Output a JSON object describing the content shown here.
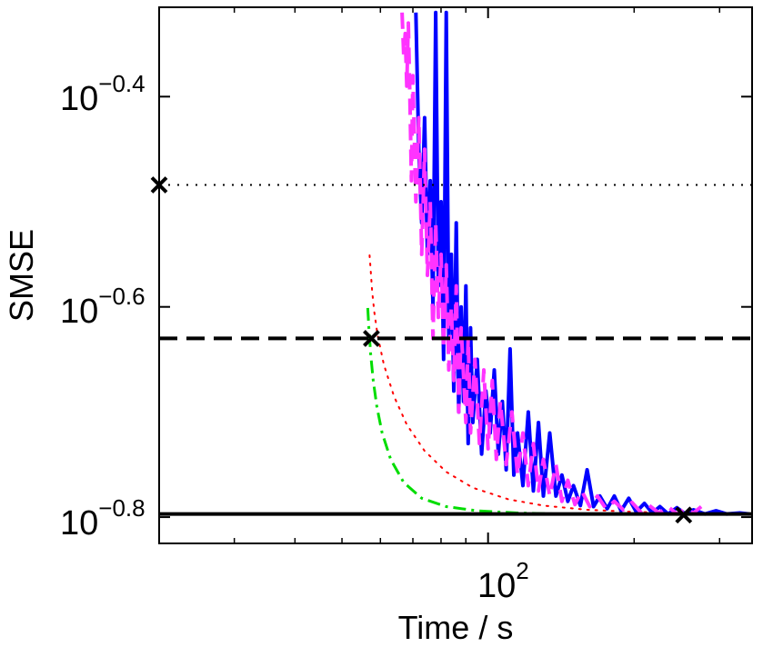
{
  "chart_data": {
    "type": "line",
    "xscale": "log",
    "yscale": "log",
    "xlabel": "Time / s",
    "ylabel": "SMSE",
    "xlim": [
      21,
      350
    ],
    "ylim_log10": [
      -0.825,
      -0.315
    ],
    "x_ticks": [
      {
        "base": "10",
        "exp": "2",
        "value": 100
      }
    ],
    "y_ticks": [
      {
        "base": "10",
        "exp": "−0.4",
        "value": -0.4
      },
      {
        "base": "10",
        "exp": "−0.6",
        "value": -0.6
      },
      {
        "base": "10",
        "exp": "−0.8",
        "value": -0.8
      }
    ],
    "horizontal_lines": [
      {
        "name": "dotted-reference",
        "y_log10": -0.484,
        "style": "dotted",
        "color": "#000000"
      },
      {
        "name": "dashed-reference",
        "y_log10": -0.63,
        "style": "dashed",
        "color": "#000000"
      },
      {
        "name": "solid-reference",
        "y_log10": -0.797,
        "style": "solid",
        "color": "#000000"
      }
    ],
    "markers": [
      {
        "name": "cross-dotted-start",
        "x": 21,
        "y_log10": -0.484
      },
      {
        "name": "cross-dashed-start",
        "x": 57.5,
        "y_log10": -0.63
      },
      {
        "name": "cross-solid-end",
        "x": 253,
        "y_log10": -0.798
      }
    ],
    "series": [
      {
        "name": "red-dotted",
        "color": "#ff0000",
        "style": "dotted",
        "width": 2,
        "points": [
          [
            57,
            -0.551
          ],
          [
            57.3,
            -0.565
          ],
          [
            57.7,
            -0.585
          ],
          [
            58.3,
            -0.605
          ],
          [
            59.2,
            -0.627
          ],
          [
            61,
            -0.655
          ],
          [
            64,
            -0.685
          ],
          [
            68,
            -0.712
          ],
          [
            74,
            -0.737
          ],
          [
            82,
            -0.757
          ],
          [
            93,
            -0.772
          ],
          [
            110,
            -0.783
          ],
          [
            130,
            -0.789
          ],
          [
            160,
            -0.793
          ],
          [
            200,
            -0.795
          ],
          [
            250,
            -0.796
          ]
        ]
      },
      {
        "name": "green-dashdot",
        "color": "#00dd00",
        "style": "dashdot",
        "width": 3,
        "points": [
          [
            56.5,
            -0.601
          ],
          [
            56.8,
            -0.62
          ],
          [
            57.3,
            -0.645
          ],
          [
            58,
            -0.67
          ],
          [
            59,
            -0.695
          ],
          [
            60.5,
            -0.72
          ],
          [
            63,
            -0.745
          ],
          [
            67,
            -0.767
          ],
          [
            73,
            -0.782
          ],
          [
            82,
            -0.79
          ],
          [
            95,
            -0.794
          ],
          [
            115,
            -0.796
          ],
          [
            140,
            -0.797
          ],
          [
            170,
            -0.797
          ]
        ]
      },
      {
        "name": "blue-solid",
        "color": "#0000ff",
        "style": "solid",
        "width": 4,
        "points": [
          [
            71,
            -0.32
          ],
          [
            72,
            -0.45
          ],
          [
            73,
            -0.52
          ],
          [
            74,
            -0.42
          ],
          [
            75,
            -0.55
          ],
          [
            76,
            -0.48
          ],
          [
            77,
            -0.6
          ],
          [
            78,
            -0.32
          ],
          [
            79,
            -0.58
          ],
          [
            80,
            -0.5
          ],
          [
            81,
            -0.65
          ],
          [
            82,
            -0.32
          ],
          [
            83,
            -0.63
          ],
          [
            84,
            -0.55
          ],
          [
            85,
            -0.68
          ],
          [
            86,
            -0.52
          ],
          [
            87,
            -0.7
          ],
          [
            88,
            -0.6
          ],
          [
            89,
            -0.69
          ],
          [
            90,
            -0.58
          ],
          [
            91,
            -0.73
          ],
          [
            92,
            -0.62
          ],
          [
            93,
            -0.71
          ],
          [
            95,
            -0.65
          ],
          [
            97,
            -0.74
          ],
          [
            99,
            -0.68
          ],
          [
            101,
            -0.72
          ],
          [
            103,
            -0.66
          ],
          [
            105,
            -0.74
          ],
          [
            107,
            -0.69
          ],
          [
            109,
            -0.755
          ],
          [
            111,
            -0.64
          ],
          [
            113,
            -0.76
          ],
          [
            115,
            -0.72
          ],
          [
            118,
            -0.77
          ],
          [
            121,
            -0.7
          ],
          [
            124,
            -0.775
          ],
          [
            127,
            -0.71
          ],
          [
            130,
            -0.78
          ],
          [
            134,
            -0.72
          ],
          [
            138,
            -0.78
          ],
          [
            142,
            -0.76
          ],
          [
            146,
            -0.785
          ],
          [
            150,
            -0.77
          ],
          [
            155,
            -0.789
          ],
          [
            160,
            -0.755
          ],
          [
            165,
            -0.79
          ],
          [
            170,
            -0.78
          ],
          [
            176,
            -0.792
          ],
          [
            182,
            -0.78
          ],
          [
            188,
            -0.794
          ],
          [
            195,
            -0.782
          ],
          [
            202,
            -0.795
          ],
          [
            210,
            -0.787
          ],
          [
            218,
            -0.796
          ],
          [
            226,
            -0.79
          ],
          [
            235,
            -0.797
          ],
          [
            245,
            -0.791
          ],
          [
            255,
            -0.797
          ],
          [
            265,
            -0.793
          ],
          [
            280,
            -0.797
          ],
          [
            295,
            -0.794
          ],
          [
            310,
            -0.797
          ],
          [
            330,
            -0.796
          ],
          [
            345,
            -0.797
          ]
        ]
      },
      {
        "name": "magenta-dashed",
        "color": "#ff33ff",
        "style": "dashed",
        "width": 4,
        "points": [
          [
            66.5,
            -0.32
          ],
          [
            67,
            -0.36
          ],
          [
            67.5,
            -0.34
          ],
          [
            68,
            -0.39
          ],
          [
            68.5,
            -0.33
          ],
          [
            69,
            -0.4
          ],
          [
            69.5,
            -0.48
          ],
          [
            70,
            -0.38
          ],
          [
            71,
            -0.5
          ],
          [
            72,
            -0.42
          ],
          [
            73,
            -0.55
          ],
          [
            74,
            -0.45
          ],
          [
            75,
            -0.57
          ],
          [
            76,
            -0.5
          ],
          [
            77,
            -0.63
          ],
          [
            78,
            -0.52
          ],
          [
            79,
            -0.61
          ],
          [
            80,
            -0.55
          ],
          [
            81,
            -0.64
          ],
          [
            82,
            -0.56
          ],
          [
            83,
            -0.66
          ],
          [
            84,
            -0.6
          ],
          [
            85,
            -0.67
          ],
          [
            86,
            -0.58
          ],
          [
            87,
            -0.7
          ],
          [
            88,
            -0.62
          ],
          [
            90,
            -0.71
          ],
          [
            91,
            -0.63
          ],
          [
            92,
            -0.72
          ],
          [
            94,
            -0.65
          ],
          [
            96,
            -0.73
          ],
          [
            98,
            -0.66
          ],
          [
            100,
            -0.735
          ],
          [
            102,
            -0.67
          ],
          [
            104,
            -0.745
          ],
          [
            106,
            -0.69
          ],
          [
            109,
            -0.75
          ],
          [
            112,
            -0.7
          ],
          [
            115,
            -0.76
          ],
          [
            118,
            -0.72
          ],
          [
            121,
            -0.77
          ],
          [
            124,
            -0.73
          ],
          [
            127,
            -0.775
          ],
          [
            130,
            -0.745
          ],
          [
            134,
            -0.78
          ],
          [
            138,
            -0.75
          ],
          [
            142,
            -0.785
          ],
          [
            146,
            -0.765
          ],
          [
            151,
            -0.788
          ],
          [
            156,
            -0.775
          ],
          [
            162,
            -0.79
          ],
          [
            168,
            -0.78
          ],
          [
            175,
            -0.792
          ],
          [
            182,
            -0.785
          ],
          [
            190,
            -0.793
          ],
          [
            198,
            -0.786
          ],
          [
            206,
            -0.795
          ],
          [
            215,
            -0.789
          ],
          [
            225,
            -0.796
          ],
          [
            235,
            -0.79
          ],
          [
            245,
            -0.797
          ],
          [
            255,
            -0.792
          ],
          [
            265,
            -0.796
          ],
          [
            275,
            -0.79
          ]
        ]
      }
    ]
  }
}
